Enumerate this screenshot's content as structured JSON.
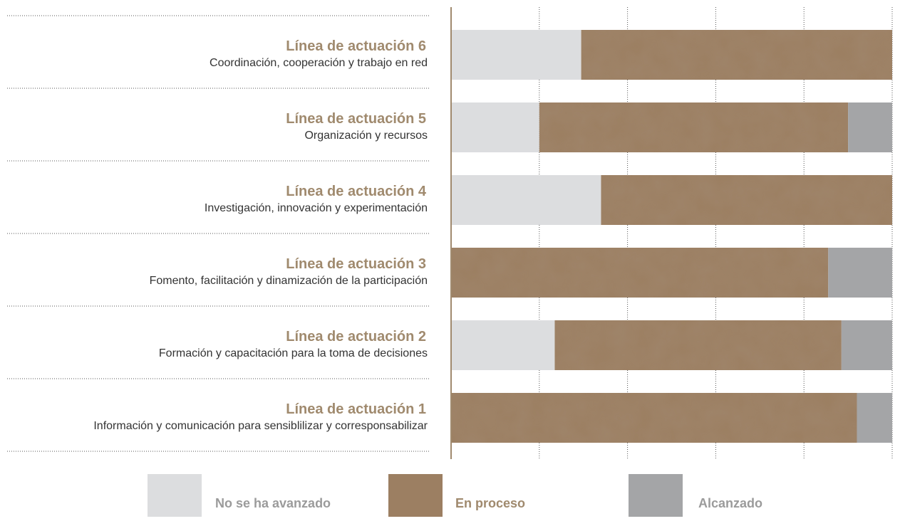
{
  "chart_data": {
    "type": "bar",
    "stacked": true,
    "orientation": "horizontal",
    "categories": [
      {
        "title": "Línea de actuación 6",
        "subtitle": "Coordinación, cooperación y trabajo en red"
      },
      {
        "title": "Línea de actuación 5",
        "subtitle": "Organización y recursos"
      },
      {
        "title": "Línea de actuación 4",
        "subtitle": "Investigación, innovación y experimentación"
      },
      {
        "title": "Línea de actuación 3",
        "subtitle": "Fomento, facilitación y dinamización de la participación"
      },
      {
        "title": "Línea de actuación 2",
        "subtitle": "Formación y capacitación para la toma de decisiones"
      },
      {
        "title": "Línea de actuación 1",
        "subtitle": "Información y comunicación para sensiblilizar y corresponsabilizar"
      }
    ],
    "series": [
      {
        "name": "No se ha avanzado",
        "color": "#dcdddf",
        "values": [
          29.5,
          20,
          34,
          0,
          23.5,
          0
        ]
      },
      {
        "name": "En proceso",
        "color": "#9c7f62",
        "values": [
          70.5,
          70,
          66,
          85.5,
          65,
          92
        ]
      },
      {
        "name": "Alcanzado",
        "color": "#a4a5a7",
        "values": [
          0,
          10,
          0,
          14.5,
          11.5,
          8
        ]
      }
    ],
    "xlim": [
      0,
      100
    ],
    "xticks": [
      "0",
      "20%",
      "40%",
      "60%",
      "80%",
      "100%"
    ],
    "grid": true,
    "legend_position": "bottom"
  },
  "colors": {
    "category_title": "#a08a6e",
    "category_subtitle": "#333333",
    "axis": "#a08a6e",
    "legend_text": "#9b9b9b",
    "legend_text_active": "#a08a6e"
  }
}
